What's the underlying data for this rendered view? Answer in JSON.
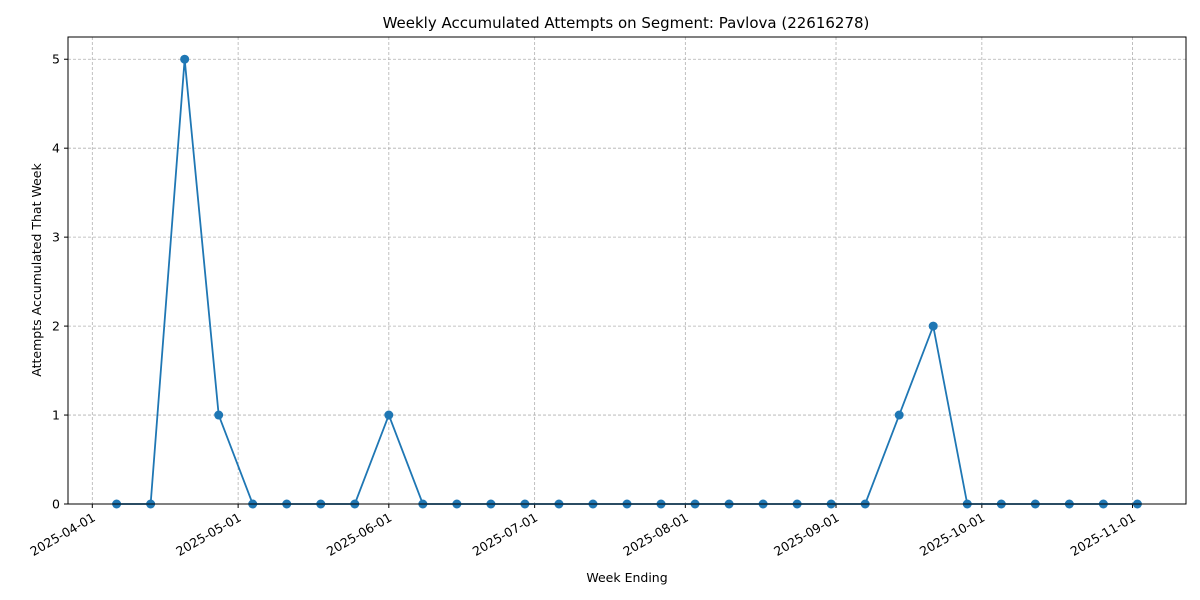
{
  "chart_data": {
    "type": "line",
    "title": "Weekly Accumulated Attempts on Segment: Pavlova (22616278)",
    "xlabel": "Week Ending",
    "ylabel": "Attempts Accumulated That Week",
    "x_ticks": [
      "2025-04-01",
      "2025-05-01",
      "2025-06-01",
      "2025-07-01",
      "2025-08-01",
      "2025-09-01",
      "2025-10-01",
      "2025-11-01"
    ],
    "y_ticks": [
      0,
      1,
      2,
      3,
      4,
      5
    ],
    "ylim": [
      0,
      5.25
    ],
    "xlim": [
      "2025-03-27",
      "2025-11-12"
    ],
    "grid": true,
    "color": "#1f77b4",
    "marker": "circle",
    "series": [
      {
        "x": [
          "2025-04-06",
          "2025-04-13",
          "2025-04-20",
          "2025-04-27",
          "2025-05-04",
          "2025-05-11",
          "2025-05-18",
          "2025-05-25",
          "2025-06-01",
          "2025-06-08",
          "2025-06-15",
          "2025-06-22",
          "2025-06-29",
          "2025-07-06",
          "2025-07-13",
          "2025-07-20",
          "2025-07-27",
          "2025-08-03",
          "2025-08-10",
          "2025-08-17",
          "2025-08-24",
          "2025-08-31",
          "2025-09-07",
          "2025-09-14",
          "2025-09-21",
          "2025-09-28",
          "2025-10-05",
          "2025-10-12",
          "2025-10-19",
          "2025-10-26",
          "2025-11-02"
        ],
        "values": [
          0,
          0,
          5,
          1,
          0,
          0,
          0,
          0,
          1,
          0,
          0,
          0,
          0,
          0,
          0,
          0,
          0,
          0,
          0,
          0,
          0,
          0,
          0,
          1,
          2,
          0,
          0,
          0,
          0,
          0,
          0
        ]
      }
    ]
  }
}
